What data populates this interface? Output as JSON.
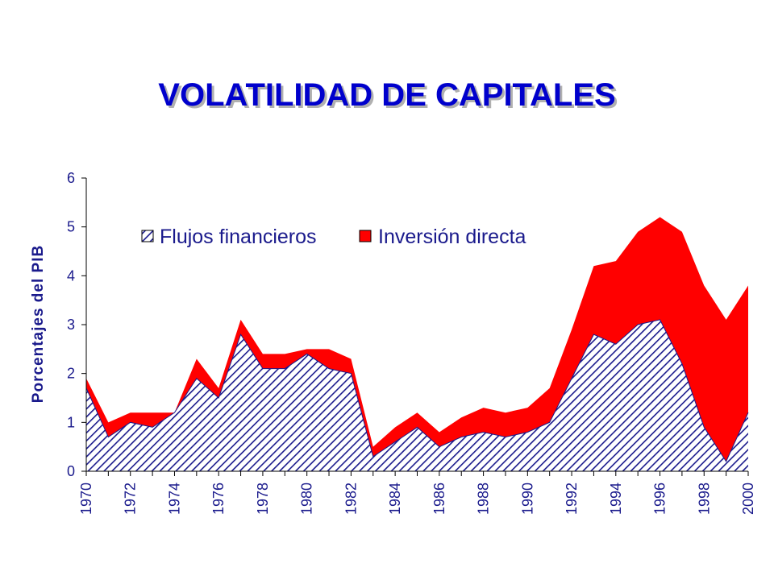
{
  "slide": {
    "title": "VOLATILIDAD DE CAPITALES"
  },
  "chart_data": {
    "type": "area",
    "stacked": true,
    "ylabel": "Porcentajes del PIB",
    "xlabel": "",
    "ylim": [
      0,
      6
    ],
    "yticks": [
      0,
      1,
      2,
      3,
      4,
      5,
      6
    ],
    "x": [
      1970,
      1971,
      1972,
      1973,
      1974,
      1975,
      1976,
      1977,
      1978,
      1979,
      1980,
      1981,
      1982,
      1983,
      1984,
      1985,
      1986,
      1987,
      1988,
      1989,
      1990,
      1991,
      1992,
      1993,
      1994,
      1995,
      1996,
      1997,
      1998,
      1999,
      2000
    ],
    "xtick_labels": [
      "1970",
      "1972",
      "1974",
      "1976",
      "1978",
      "1980",
      "1982",
      "1984",
      "1986",
      "1988",
      "1990",
      "1992",
      "1994",
      "1996",
      "1998",
      "2000"
    ],
    "series": [
      {
        "name": "Flujos financieros",
        "pattern": "diagonal-hatch",
        "color": "#1a1a8c",
        "values": [
          1.7,
          0.7,
          1.0,
          0.9,
          1.2,
          1.9,
          1.5,
          2.8,
          2.1,
          2.1,
          2.4,
          2.1,
          2.0,
          0.3,
          0.6,
          0.9,
          0.5,
          0.7,
          0.8,
          0.7,
          0.8,
          1.0,
          1.9,
          2.8,
          2.6,
          3.0,
          3.1,
          2.2,
          0.9,
          0.2,
          1.2
        ]
      },
      {
        "name": "Inversión directa",
        "color": "#ff0000",
        "values": [
          0.2,
          0.3,
          0.2,
          0.3,
          0.0,
          0.4,
          0.2,
          0.3,
          0.3,
          0.3,
          0.1,
          0.4,
          0.3,
          0.2,
          0.3,
          0.3,
          0.3,
          0.4,
          0.5,
          0.5,
          0.5,
          0.7,
          1.0,
          1.4,
          1.7,
          1.9,
          2.1,
          2.7,
          2.9,
          2.9,
          2.6
        ]
      }
    ],
    "legend": {
      "placement": "top"
    },
    "grid": false
  }
}
